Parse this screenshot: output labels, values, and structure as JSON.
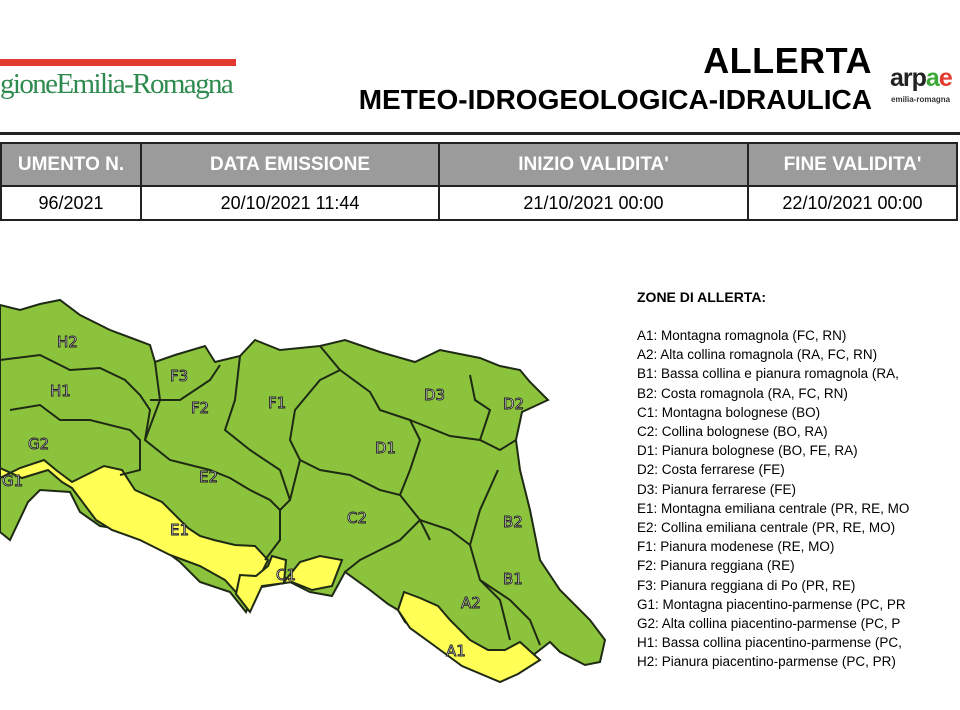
{
  "header": {
    "logo_text": "gioneEmilia-Romagna",
    "title": "ALLERTA",
    "subtitle": "METEO-IDROGEOLOGICA-IDRAULICA",
    "arpae_logo": {
      "text_a": "arp",
      "text_b": "a",
      "text_c": "e",
      "sub": "emilia-romagna"
    }
  },
  "table": {
    "headers": [
      "UMENTO N.",
      "DATA EMISSIONE",
      "INIZIO VALIDITA'",
      "FINE VALIDITA'"
    ],
    "values": [
      "96/2021",
      "20/10/2021 11:44",
      "21/10/2021 00:00",
      "22/10/2021 00:00"
    ]
  },
  "colors": {
    "green": "#8cc33c",
    "yellow": "#ffff55",
    "border": "#1e2a14"
  },
  "map": {
    "zones": [
      {
        "code": "H2",
        "level": "green"
      },
      {
        "code": "H1",
        "level": "green"
      },
      {
        "code": "F3",
        "level": "green"
      },
      {
        "code": "F2",
        "level": "green"
      },
      {
        "code": "F1",
        "level": "green"
      },
      {
        "code": "D3",
        "level": "green"
      },
      {
        "code": "D2",
        "level": "green"
      },
      {
        "code": "G2",
        "level": "green"
      },
      {
        "code": "D1",
        "level": "green"
      },
      {
        "code": "G1",
        "level": "yellow"
      },
      {
        "code": "E2",
        "level": "green"
      },
      {
        "code": "E1",
        "level": "yellow"
      },
      {
        "code": "C2",
        "level": "green"
      },
      {
        "code": "B2",
        "level": "green"
      },
      {
        "code": "C1",
        "level": "yellow"
      },
      {
        "code": "B1",
        "level": "green"
      },
      {
        "code": "A2",
        "level": "green"
      },
      {
        "code": "A1",
        "level": "yellow"
      }
    ]
  },
  "legend": {
    "title": "ZONE DI ALLERTA:",
    "items": [
      "A1: Montagna romagnola (FC, RN)",
      "A2: Alta collina romagnola (RA, FC, RN)",
      "B1: Bassa collina e pianura romagnola (RA,",
      "B2: Costa romagnola (RA, FC, RN)",
      "C1: Montagna bolognese (BO)",
      "C2: Collina bolognese (BO, RA)",
      "D1: Pianura bolognese (BO, FE, RA)",
      "D2: Costa ferrarese (FE)",
      "D3: Pianura ferrarese (FE)",
      "E1: Montagna emiliana centrale (PR, RE, MO",
      "E2: Collina emiliana centrale (PR, RE, MO)",
      "F1: Pianura modenese (RE, MO)",
      "F2: Pianura reggiana (RE)",
      "F3: Pianura reggiana di Po (PR, RE)",
      "G1: Montagna piacentino-parmense (PC, PR",
      "G2: Alta collina piacentino-parmense (PC, P",
      "H1: Bassa collina piacentino-parmense (PC,",
      "H2: Pianura piacentino-parmense (PC, PR)"
    ]
  }
}
